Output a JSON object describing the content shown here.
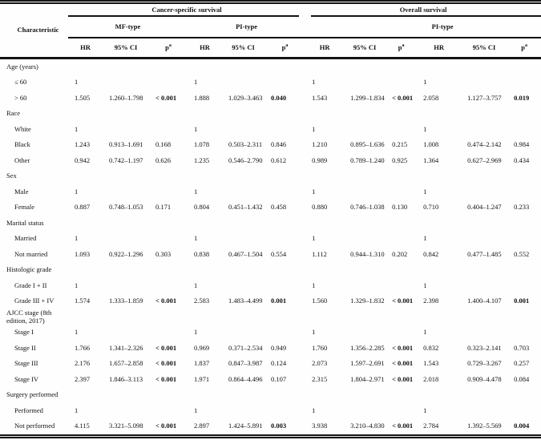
{
  "header": {
    "characteristic": "Characteristic",
    "cancer_specific": "Cancer-specific survival",
    "overall": "Overall survival",
    "mf_type": "MF-type",
    "pi_type_css": "PI-type",
    "pi_type_os": "PI-type",
    "hr": "HR",
    "ci": "95% CI",
    "p": "p",
    "p_sup": "a"
  },
  "table": {
    "rows": [
      {
        "label": "Age (years)",
        "group": true,
        "cells": []
      },
      {
        "label": "≤ 60",
        "group": false,
        "cells": [
          "1",
          "",
          "",
          "1",
          "",
          "",
          "1",
          "",
          "",
          "1",
          "",
          ""
        ]
      },
      {
        "label": "> 60",
        "group": false,
        "cells": [
          "1.505",
          "1.260–1.798",
          "< 0.001",
          "1.888",
          "1.029–3.463",
          "0.040",
          "1.543",
          "1.299–1.834",
          "< 0.001",
          "2.058",
          "1.127–3.757",
          "0.019"
        ],
        "bold": [
          2,
          5,
          8,
          11
        ]
      },
      {
        "label": "Race",
        "group": true,
        "cells": []
      },
      {
        "label": "White",
        "group": false,
        "cells": [
          "1",
          "",
          "",
          "1",
          "",
          "",
          "1",
          "",
          "",
          "1",
          "",
          ""
        ]
      },
      {
        "label": "Black",
        "group": false,
        "cells": [
          "1.243",
          "0.913–1.691",
          "0.168",
          "1.078",
          "0.503–2.311",
          "0.846",
          "1.210",
          "0.895–1.636",
          "0.215",
          "1.008",
          "0.474–2.142",
          "0.984"
        ]
      },
      {
        "label": "Other",
        "group": false,
        "cells": [
          "0.942",
          "0.742–1.197",
          "0.626",
          "1.235",
          "0.546–2.790",
          "0.612",
          "0.989",
          "0.789–1.240",
          "0.925",
          "1.364",
          "0.627–2.969",
          "0.434"
        ]
      },
      {
        "label": "Sex",
        "group": true,
        "cells": []
      },
      {
        "label": "Male",
        "group": false,
        "cells": [
          "1",
          "",
          "",
          "1",
          "",
          "",
          "1",
          "",
          "",
          "1",
          "",
          ""
        ]
      },
      {
        "label": "Female",
        "group": false,
        "cells": [
          "0.887",
          "0.748–1.053",
          "0.171",
          "0.804",
          "0.451–1.432",
          "0.458",
          "0.880",
          "0.746–1.038",
          "0.130",
          "0.710",
          "0.404–1.247",
          "0.233"
        ]
      },
      {
        "label": "Marital status",
        "group": true,
        "cells": []
      },
      {
        "label": "Married",
        "group": false,
        "cells": [
          "1",
          "",
          "",
          "1",
          "",
          "",
          "1",
          "",
          "",
          "1",
          "",
          ""
        ]
      },
      {
        "label": "Not married",
        "group": false,
        "cells": [
          "1.093",
          "0.922–1.296",
          "0.303",
          "0.838",
          "0.467–1.504",
          "0.554",
          "1.112",
          "0.944–1.310",
          "0.202",
          "0.842",
          "0.477–1.485",
          "0.552"
        ]
      },
      {
        "label": "Histologic grade",
        "group": true,
        "cells": []
      },
      {
        "label": "Grade I + II",
        "group": false,
        "cells": [
          "1",
          "",
          "",
          "1",
          "",
          "",
          "1",
          "",
          "",
          "1",
          "",
          ""
        ]
      },
      {
        "label": "Grade III + IV",
        "group": false,
        "cells": [
          "1.574",
          "1.333–1.859",
          "< 0.001",
          "2.583",
          "1.483–4.499",
          "0.001",
          "1.560",
          "1.329–1.832",
          "< 0.001",
          "2.398",
          "1.400–4.107",
          "0.001"
        ],
        "bold": [
          2,
          5,
          8,
          11
        ]
      },
      {
        "label": "AJCC stage (8th edition, 2017)",
        "group": true,
        "cells": []
      },
      {
        "label": "Stage I",
        "group": false,
        "cells": [
          "1",
          "",
          "",
          "1",
          "",
          "",
          "1",
          "",
          "",
          "1",
          "",
          ""
        ]
      },
      {
        "label": "Stage II",
        "group": false,
        "cells": [
          "1.766",
          "1.341–2.326",
          "< 0.001",
          "0.969",
          "0.371–2.534",
          "0.949",
          "1.760",
          "1.356–2.285",
          "< 0.001",
          "0.832",
          "0.323–2.141",
          "0.703"
        ],
        "bold": [
          2,
          8
        ]
      },
      {
        "label": "Stage III",
        "group": false,
        "cells": [
          "2.176",
          "1.657–2.858",
          "< 0.001",
          "1.837",
          "0.847–3.987",
          "0.124",
          "2.073",
          "1.597–2.691",
          "< 0.001",
          "1.543",
          "0.729–3.267",
          "0.257"
        ],
        "bold": [
          2,
          8
        ]
      },
      {
        "label": "Stage IV",
        "group": false,
        "cells": [
          "2.397",
          "1.846–3.113",
          "< 0.001",
          "1.971",
          "0.864–4.496",
          "0.107",
          "2.315",
          "1.804–2.971",
          "< 0.001",
          "2.018",
          "0.909–4.478",
          "0.084"
        ],
        "bold": [
          2,
          8
        ]
      },
      {
        "label": "Surgery performed",
        "group": true,
        "cells": []
      },
      {
        "label": "Performed",
        "group": false,
        "cells": [
          "1",
          "",
          "",
          "1",
          "",
          "",
          "1",
          "",
          "",
          "1",
          "",
          ""
        ]
      },
      {
        "label": "Not performed",
        "group": false,
        "cells": [
          "4.115",
          "3.321–5.098",
          "< 0.001",
          "2.897",
          "1.424–5.891",
          "0.003",
          "3.938",
          "3.210–4.830",
          "< 0.001",
          "2.784",
          "1.392–5.569",
          "0.004"
        ],
        "bold": [
          2,
          5,
          8,
          11
        ]
      }
    ]
  }
}
